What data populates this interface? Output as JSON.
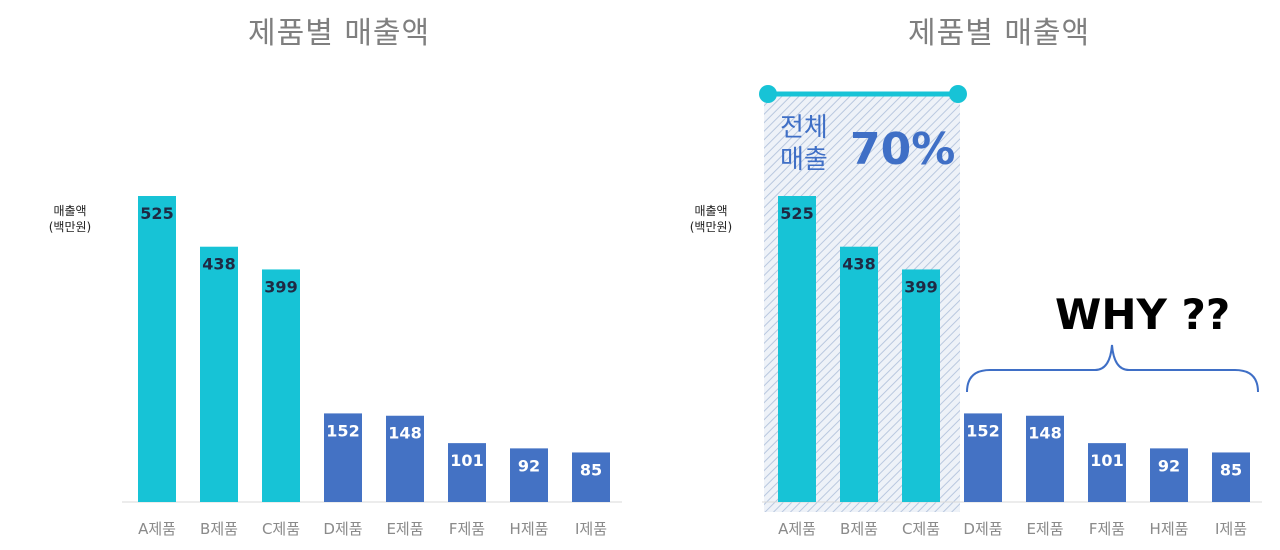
{
  "chart_data": [
    {
      "type": "bar",
      "title": "제품별 매출액",
      "ylabel": [
        "매출액",
        "(백만원)"
      ],
      "categories": [
        "A제품",
        "B제품",
        "C제품",
        "D제품",
        "E제품",
        "F제품",
        "H제품",
        "I제품"
      ],
      "values": [
        525,
        438,
        399,
        152,
        148,
        101,
        92,
        85
      ],
      "bar_colors": [
        "#17c3d6",
        "#17c3d6",
        "#17c3d6",
        "#4472c4",
        "#4472c4",
        "#4472c4",
        "#4472c4",
        "#4472c4"
      ],
      "value_label_colors": [
        "#1f2a44",
        "#1f2a44",
        "#1f2a44",
        "#ffffff",
        "#ffffff",
        "#ffffff",
        "#ffffff",
        "#ffffff"
      ],
      "grid": false
    },
    {
      "type": "bar",
      "title": "제품별 매출액",
      "ylabel": [
        "매출액",
        "(백만원)"
      ],
      "categories": [
        "A제품",
        "B제품",
        "C제품",
        "D제품",
        "E제품",
        "F제품",
        "H제품",
        "I제품"
      ],
      "values": [
        525,
        438,
        399,
        152,
        148,
        101,
        92,
        85
      ],
      "bar_colors": [
        "#17c3d6",
        "#17c3d6",
        "#17c3d6",
        "#4472c4",
        "#4472c4",
        "#4472c4",
        "#4472c4",
        "#4472c4"
      ],
      "value_label_colors": [
        "#1f2a44",
        "#1f2a44",
        "#1f2a44",
        "#ffffff",
        "#ffffff",
        "#ffffff",
        "#ffffff",
        "#ffffff"
      ],
      "grid": false,
      "annotations": {
        "highlight_label_line1": "전체",
        "highlight_label_line2": "매출",
        "highlight_percent": "70%",
        "brace_text": "WHY ??"
      }
    }
  ],
  "colors": {
    "accent_cyan": "#17c3d6",
    "accent_blue": "#4472c4",
    "highlight_text": "#3f6fc6"
  }
}
